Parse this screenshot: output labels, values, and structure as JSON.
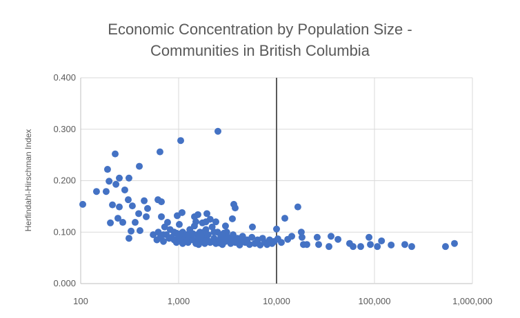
{
  "chart_data": {
    "type": "scatter",
    "title_lines": [
      "Economic Concentration by Population Size -",
      "Communities in British Columbia"
    ],
    "xlabel": "",
    "ylabel": "Herfindahl-Hirschman Index",
    "x_scale": "log",
    "xlim": [
      100,
      1000000
    ],
    "ylim": [
      0,
      0.4
    ],
    "x_ticks": [
      100,
      1000,
      10000,
      100000,
      1000000
    ],
    "x_tick_labels": [
      "100",
      "1,000",
      "10,000",
      "100,000",
      "1,000,000"
    ],
    "y_ticks": [
      0,
      0.1,
      0.2,
      0.3,
      0.4
    ],
    "y_tick_labels": [
      "0.000",
      "0.100",
      "0.200",
      "0.300",
      "0.400"
    ],
    "grid": true,
    "legend": "none",
    "reference_line_x": 10000,
    "colors": {
      "points": "#4472C4",
      "grid": "#D9D9D9",
      "reference_line": "#595959",
      "text": "#595959"
    },
    "points": [
      [
        105,
        0.154
      ],
      [
        145,
        0.179
      ],
      [
        182,
        0.179
      ],
      [
        188,
        0.222
      ],
      [
        195,
        0.199
      ],
      [
        225,
        0.252
      ],
      [
        229,
        0.193
      ],
      [
        248,
        0.205
      ],
      [
        282,
        0.182
      ],
      [
        311,
        0.205
      ],
      [
        397,
        0.228
      ],
      [
        211,
        0.153
      ],
      [
        248,
        0.149
      ],
      [
        240,
        0.127
      ],
      [
        269,
        0.119
      ],
      [
        201,
        0.118
      ],
      [
        306,
        0.163
      ],
      [
        337,
        0.151
      ],
      [
        445,
        0.161
      ],
      [
        482,
        0.146
      ],
      [
        391,
        0.136
      ],
      [
        467,
        0.13
      ],
      [
        360,
        0.119
      ],
      [
        327,
        0.102
      ],
      [
        311,
        0.088
      ],
      [
        403,
        0.103
      ],
      [
        645,
        0.256
      ],
      [
        1050,
        0.278
      ],
      [
        2520,
        0.296
      ],
      [
        615,
        0.163
      ],
      [
        667,
        0.159
      ],
      [
        667,
        0.13
      ],
      [
        771,
        0.119
      ],
      [
        968,
        0.132
      ],
      [
        1084,
        0.138
      ],
      [
        1016,
        0.115
      ],
      [
        1453,
        0.13
      ],
      [
        1574,
        0.134
      ],
      [
        1945,
        0.136
      ],
      [
        3660,
        0.154
      ],
      [
        3780,
        0.147
      ],
      [
        3540,
        0.126
      ],
      [
        3010,
        0.112
      ],
      [
        5670,
        0.11
      ],
      [
        12150,
        0.127
      ],
      [
        10000,
        0.106
      ],
      [
        550,
        0.095
      ],
      [
        600,
        0.085
      ],
      [
        620,
        0.1
      ],
      [
        650,
        0.09
      ],
      [
        700,
        0.082
      ],
      [
        720,
        0.11
      ],
      [
        750,
        0.095
      ],
      [
        800,
        0.088
      ],
      [
        820,
        0.105
      ],
      [
        850,
        0.09
      ],
      [
        900,
        0.085
      ],
      [
        950,
        0.098
      ],
      [
        1000,
        0.092
      ],
      [
        1050,
        0.083
      ],
      [
        1100,
        0.1
      ],
      [
        1150,
        0.088
      ],
      [
        1200,
        0.095
      ],
      [
        1250,
        0.08
      ],
      [
        1300,
        0.105
      ],
      [
        1350,
        0.09
      ],
      [
        1400,
        0.085
      ],
      [
        1450,
        0.112
      ],
      [
        1500,
        0.078
      ],
      [
        1550,
        0.095
      ],
      [
        1600,
        0.088
      ],
      [
        1650,
        0.1
      ],
      [
        1700,
        0.082
      ],
      [
        1750,
        0.118
      ],
      [
        1800,
        0.09
      ],
      [
        1850,
        0.078
      ],
      [
        1900,
        0.105
      ],
      [
        1950,
        0.085
      ],
      [
        2000,
        0.095
      ],
      [
        2100,
        0.08
      ],
      [
        2200,
        0.11
      ],
      [
        2300,
        0.088
      ],
      [
        2400,
        0.078
      ],
      [
        2500,
        0.1
      ],
      [
        2600,
        0.085
      ],
      [
        2700,
        0.092
      ],
      [
        2800,
        0.076
      ],
      [
        2900,
        0.098
      ],
      [
        3000,
        0.082
      ],
      [
        3200,
        0.09
      ],
      [
        3400,
        0.078
      ],
      [
        3600,
        0.095
      ],
      [
        3800,
        0.08
      ],
      [
        4000,
        0.088
      ],
      [
        4200,
        0.075
      ],
      [
        4500,
        0.092
      ],
      [
        4800,
        0.08
      ],
      [
        5000,
        0.085
      ],
      [
        5300,
        0.076
      ],
      [
        5600,
        0.09
      ],
      [
        6000,
        0.078
      ],
      [
        6400,
        0.085
      ],
      [
        6800,
        0.075
      ],
      [
        7200,
        0.088
      ],
      [
        7600,
        0.08
      ],
      [
        8000,
        0.076
      ],
      [
        8500,
        0.085
      ],
      [
        9000,
        0.078
      ],
      [
        9500,
        0.082
      ],
      [
        1100,
        0.078
      ],
      [
        1300,
        0.085
      ],
      [
        1600,
        0.076
      ],
      [
        1800,
        0.1
      ],
      [
        2000,
        0.083
      ],
      [
        2300,
        0.1
      ],
      [
        2600,
        0.079
      ],
      [
        1400,
        0.097
      ],
      [
        1700,
        0.093
      ],
      [
        1200,
        0.082
      ],
      [
        900,
        0.1
      ],
      [
        700,
        0.095
      ],
      [
        1500,
        0.12
      ],
      [
        2100,
        0.125
      ],
      [
        2400,
        0.12
      ],
      [
        1900,
        0.12
      ],
      [
        3500,
        0.085
      ],
      [
        4400,
        0.083
      ],
      [
        2800,
        0.088
      ],
      [
        3100,
        0.1
      ],
      [
        1250,
        0.093
      ],
      [
        950,
        0.08
      ],
      [
        1050,
        0.097
      ],
      [
        16500,
        0.149
      ],
      [
        17900,
        0.1
      ],
      [
        18200,
        0.09
      ],
      [
        14300,
        0.092
      ],
      [
        13000,
        0.086
      ],
      [
        10300,
        0.087
      ],
      [
        11200,
        0.08
      ],
      [
        18800,
        0.076
      ],
      [
        20400,
        0.076
      ],
      [
        26000,
        0.09
      ],
      [
        26900,
        0.076
      ],
      [
        36000,
        0.092
      ],
      [
        34300,
        0.072
      ],
      [
        42400,
        0.086
      ],
      [
        55700,
        0.078
      ],
      [
        60500,
        0.072
      ],
      [
        72300,
        0.072
      ],
      [
        87900,
        0.09
      ],
      [
        90800,
        0.076
      ],
      [
        107000,
        0.072
      ],
      [
        118000,
        0.083
      ],
      [
        148000,
        0.075
      ],
      [
        204000,
        0.076
      ],
      [
        240000,
        0.072
      ],
      [
        531000,
        0.072
      ],
      [
        656000,
        0.078
      ]
    ]
  }
}
